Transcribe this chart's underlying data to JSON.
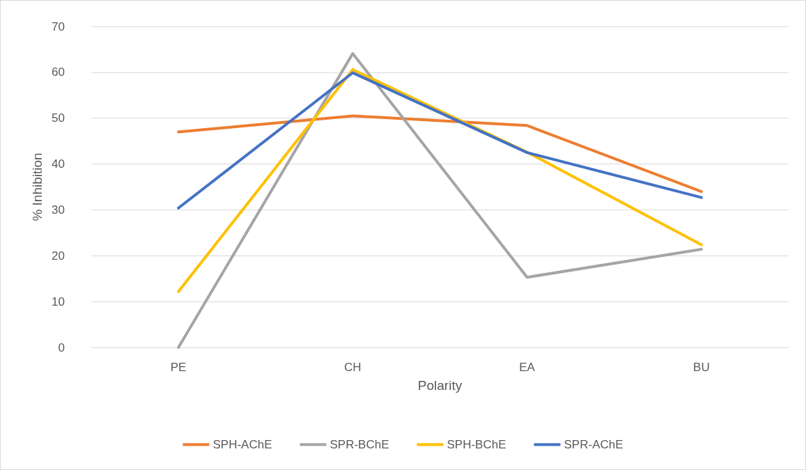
{
  "chart_data": {
    "type": "line",
    "xlabel": "Polarity",
    "ylabel": "% Inhibition",
    "categories": [
      "PE",
      "CH",
      "EA",
      "BU"
    ],
    "series": [
      {
        "name": "SPH-AChE",
        "color": "#ed7d31",
        "values": [
          47.0,
          50.5,
          48.4,
          34.0
        ]
      },
      {
        "name": "SPR-BChE",
        "color": "#a5a5a5",
        "values": [
          0,
          64.1,
          15.3,
          21.4
        ]
      },
      {
        "name": "SPH-BChE",
        "color": "#ffc000",
        "values": [
          12.2,
          60.6,
          42.6,
          22.4
        ]
      },
      {
        "name": "SPR-AChE",
        "color": "#4472c4",
        "values": [
          30.4,
          59.9,
          42.5,
          32.7
        ]
      }
    ],
    "ylim": [
      0,
      70
    ],
    "yticks": [
      0,
      10,
      20,
      30,
      40,
      50,
      60,
      70
    ],
    "grid": "y",
    "legend": "bottom",
    "marker": "none",
    "line_style": "solid"
  }
}
